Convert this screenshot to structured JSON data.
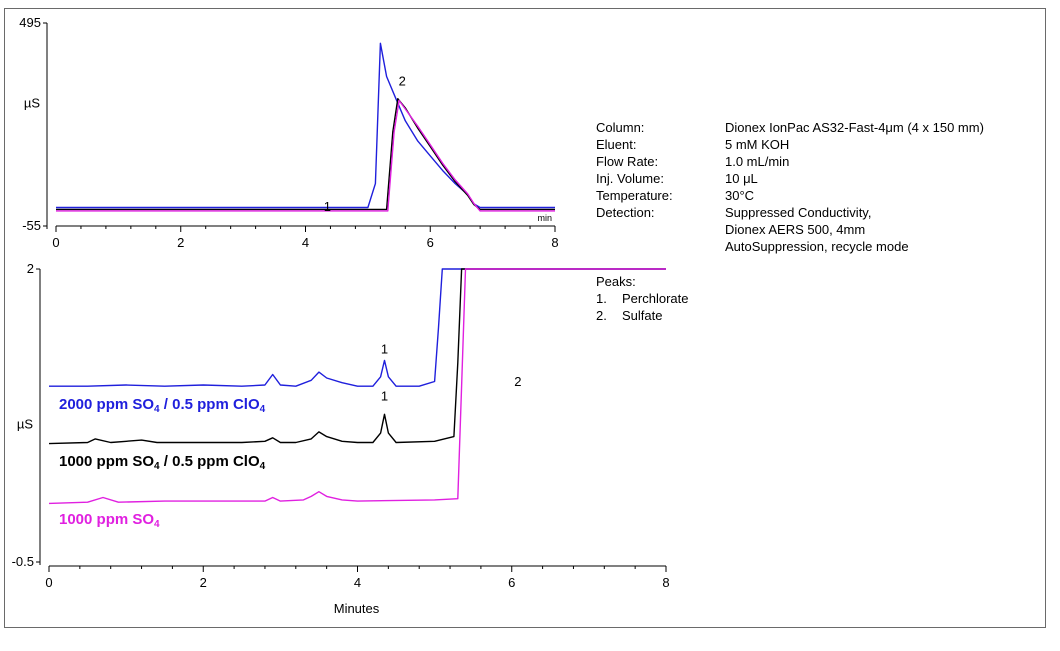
{
  "chart_data": [
    {
      "type": "line",
      "name": "inset-full-scale",
      "x_unit": "min",
      "xlim": [
        0,
        8
      ],
      "ylim": [
        -55,
        495
      ],
      "xticks": [
        "0",
        "2",
        "4",
        "6",
        "8"
      ],
      "yticks": [
        "495",
        "-55"
      ],
      "ylabel": "µS",
      "xunit_label": "min",
      "peak_labels": [
        {
          "label": "1",
          "x": 4.35,
          "y": -15
        },
        {
          "label": "2",
          "x": 5.55,
          "y": 325
        }
      ],
      "series": [
        {
          "color": "#1f1fdc",
          "x": [
            0,
            5.0,
            5.12,
            5.2,
            5.3,
            5.45,
            5.6,
            5.8,
            6.0,
            6.2,
            6.4,
            6.6,
            6.7,
            6.8,
            8.0
          ],
          "y": [
            -5,
            -5,
            60,
            440,
            350,
            290,
            230,
            175,
            135,
            95,
            60,
            30,
            5,
            -5,
            -5
          ]
        },
        {
          "color": "#000000",
          "x": [
            0,
            5.3,
            5.4,
            5.48,
            5.6,
            5.8,
            6.0,
            6.2,
            6.4,
            6.6,
            6.7,
            6.8,
            8.0
          ],
          "y": [
            -10,
            -10,
            200,
            290,
            265,
            210,
            160,
            110,
            65,
            28,
            3,
            -10,
            -10
          ]
        },
        {
          "color": "#e020e0",
          "x": [
            0,
            5.32,
            5.42,
            5.5,
            5.6,
            5.8,
            6.0,
            6.2,
            6.4,
            6.6,
            6.7,
            6.8,
            8.0
          ],
          "y": [
            -14,
            -14,
            200,
            285,
            262,
            215,
            165,
            115,
            70,
            32,
            6,
            -14,
            -14
          ]
        }
      ]
    },
    {
      "type": "line",
      "name": "main-expanded-scale",
      "xlabel": "Minutes",
      "ylabel": "µS",
      "xlim": [
        0,
        8
      ],
      "ylim": [
        -0.5,
        2
      ],
      "xticks": [
        "0",
        "2",
        "4",
        "6",
        "8"
      ],
      "yticks": [
        "2",
        "-0.5"
      ],
      "peak_labels": [
        {
          "label": "1",
          "x": 4.35,
          "y": 1.28
        },
        {
          "label": "1",
          "x": 4.35,
          "y": 0.88
        },
        {
          "label": "2",
          "x": 6.08,
          "y": 1.0
        }
      ],
      "series": [
        {
          "name": "2000 ppm SO4 / 0.5 ppm ClO4",
          "color": "#1f1fdc",
          "x": [
            0,
            0.5,
            1.0,
            1.5,
            2.0,
            2.5,
            2.8,
            2.9,
            3.0,
            3.2,
            3.4,
            3.5,
            3.6,
            3.8,
            4.0,
            4.2,
            4.3,
            4.35,
            4.4,
            4.5,
            4.8,
            5.0,
            5.05,
            5.1,
            8.0
          ],
          "y": [
            1.0,
            1.0,
            1.01,
            1.0,
            1.01,
            1.0,
            1.01,
            1.1,
            1.01,
            1.0,
            1.05,
            1.12,
            1.07,
            1.03,
            1.0,
            1.0,
            1.08,
            1.22,
            1.08,
            1.0,
            1.0,
            1.04,
            1.5,
            2.0,
            2.0
          ]
        },
        {
          "name": "1000 ppm SO4 / 0.5 ppm ClO4",
          "color": "#000000",
          "x": [
            0,
            0.5,
            0.6,
            0.8,
            1.2,
            1.4,
            2.0,
            2.5,
            2.8,
            2.9,
            3.0,
            3.2,
            3.4,
            3.5,
            3.6,
            3.8,
            4.0,
            4.2,
            4.3,
            4.35,
            4.4,
            4.5,
            5.0,
            5.25,
            5.3,
            5.35,
            8.0
          ],
          "y": [
            0.51,
            0.52,
            0.55,
            0.52,
            0.54,
            0.52,
            0.52,
            0.52,
            0.53,
            0.56,
            0.52,
            0.52,
            0.55,
            0.61,
            0.57,
            0.53,
            0.52,
            0.52,
            0.6,
            0.76,
            0.6,
            0.52,
            0.53,
            0.57,
            1.2,
            2.0,
            2.0
          ]
        },
        {
          "name": "1000 ppm SO4",
          "color": "#e020e0",
          "x": [
            0,
            0.5,
            0.7,
            0.9,
            1.5,
            2.0,
            2.5,
            2.8,
            2.9,
            3.0,
            3.3,
            3.4,
            3.5,
            3.6,
            3.8,
            4.0,
            5.0,
            5.3,
            5.35,
            5.4,
            8.0
          ],
          "y": [
            0.0,
            0.01,
            0.05,
            0.01,
            0.02,
            0.02,
            0.02,
            0.02,
            0.05,
            0.02,
            0.03,
            0.06,
            0.1,
            0.06,
            0.03,
            0.02,
            0.03,
            0.04,
            1.0,
            2.0,
            2.0
          ]
        }
      ]
    }
  ],
  "conditions": [
    {
      "key": "Column:",
      "value": "Dionex IonPac AS32-Fast-4μm (4 x 150 mm)"
    },
    {
      "key": "Eluent:",
      "value": "5 mM KOH"
    },
    {
      "key": "Flow Rate:",
      "value": "1.0 mL/min"
    },
    {
      "key": "Inj. Volume:",
      "value": "10 μL"
    },
    {
      "key": "Temperature:",
      "value": "30°C"
    },
    {
      "key": "Detection:",
      "value": "Suppressed Conductivity,"
    },
    {
      "key": "",
      "value": "Dionex AERS 500, 4mm"
    },
    {
      "key": "",
      "value": "AutoSuppression, recycle mode"
    }
  ],
  "peaks": {
    "title": "Peaks:",
    "items": [
      {
        "num": "1.",
        "name": "Perchlorate"
      },
      {
        "num": "2.",
        "name": "Sulfate"
      }
    ]
  },
  "legend": {
    "blue": {
      "a": "2000 ppm SO",
      "sub1": "4",
      "b": " / 0.5 ppm ClO",
      "sub2": "4"
    },
    "black": {
      "a": "1000 ppm SO",
      "sub1": "4",
      "b": " / 0.5 ppm ClO",
      "sub2": "4"
    },
    "magenta": {
      "a": "1000 ppm SO",
      "sub1": "4",
      "b": "",
      "sub2": ""
    }
  }
}
